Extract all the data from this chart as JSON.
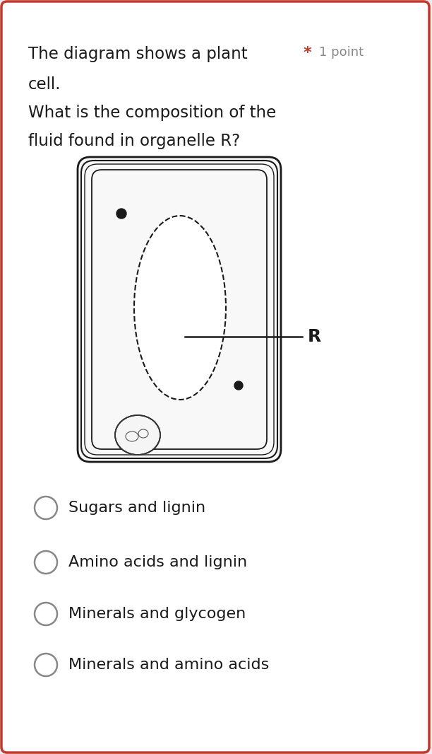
{
  "bg_outer": "#eceaf0",
  "bg_card": "#ffffff",
  "border_color": "#c0392b",
  "question_line1": "The diagram shows a plant",
  "question_line2": "cell.",
  "question_line3": "What is the composition of the",
  "question_line4": "fluid found in organelle R?",
  "asterisk": "*",
  "points": "1 point",
  "asterisk_color": "#c0392b",
  "points_color": "#888888",
  "options": [
    "Sugars and lignin",
    "Amino acids and lignin",
    "Minerals and glycogen",
    "Minerals and amino acids"
  ]
}
